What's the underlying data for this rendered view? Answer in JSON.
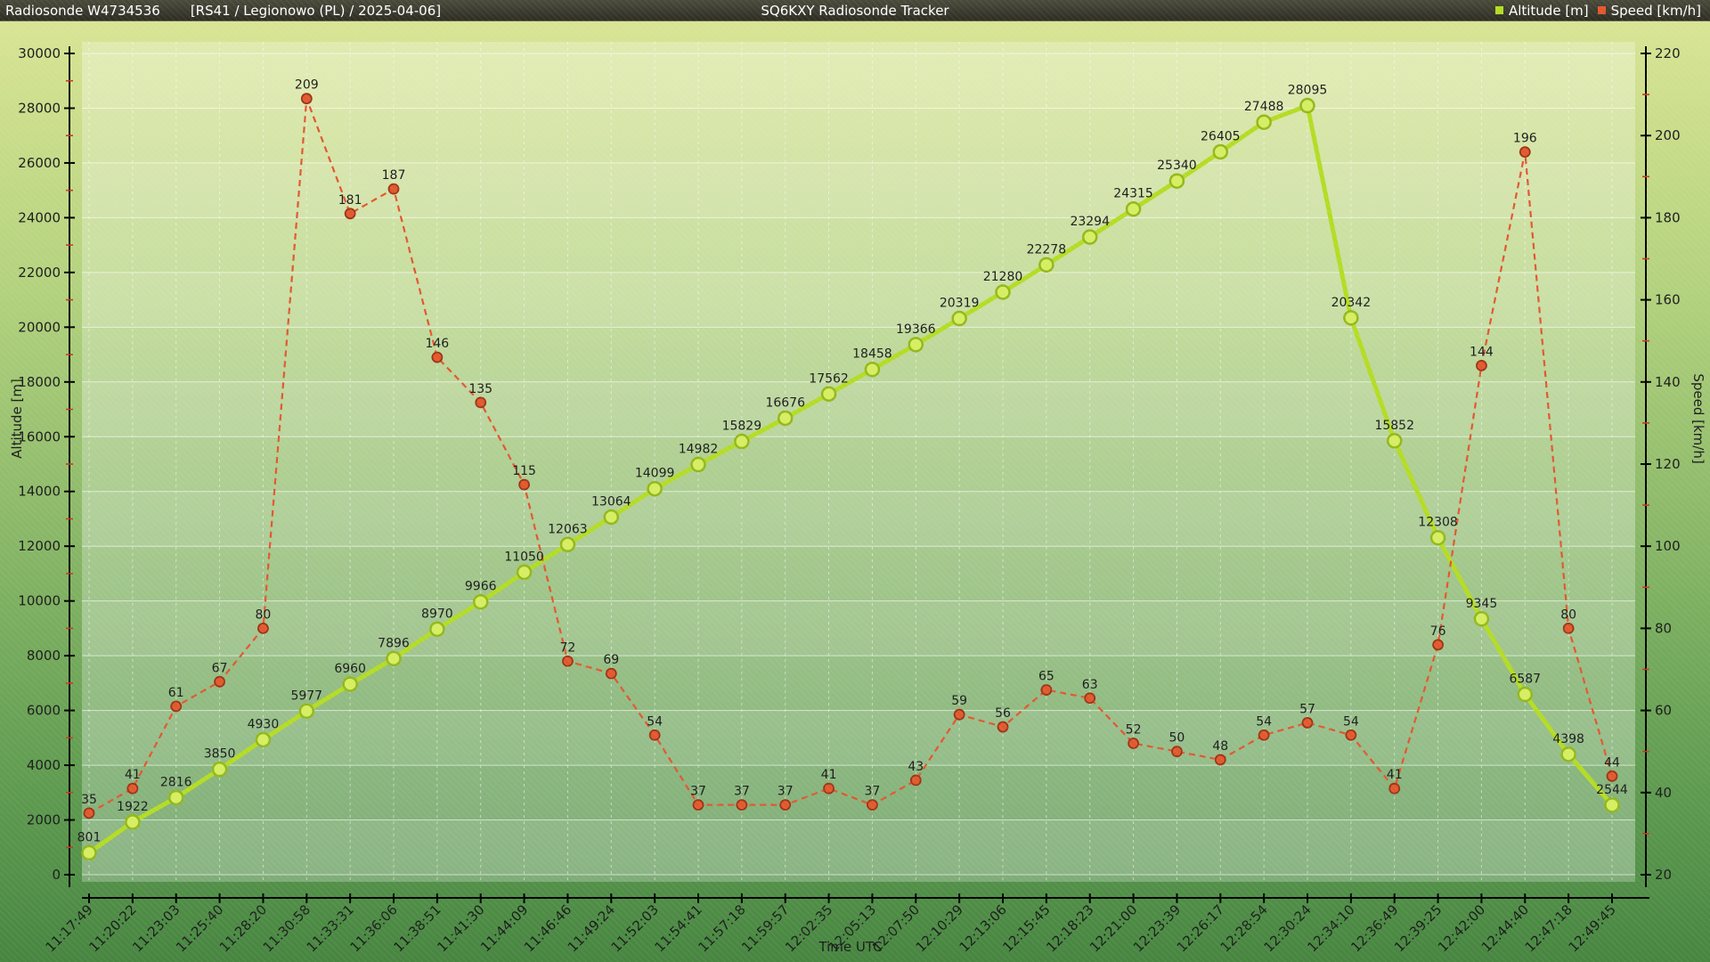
{
  "header": {
    "station": "Radiosonde W4734536",
    "details": "[RS41 / Legionowo (PL) / 2025-04-06]",
    "app_title": "SQ6KXY Radiosonde Tracker",
    "legend": [
      {
        "label": "Altitude [m]",
        "color": "#b4dc24"
      },
      {
        "label": "Speed [km/h]",
        "color": "#e2572f"
      }
    ]
  },
  "chart_data": {
    "type": "line",
    "title": "SQ6KXY Radiosonde Tracker",
    "xlabel": "Time UTC",
    "categories": [
      "11:17:49",
      "11:20:22",
      "11:23:03",
      "11:25:40",
      "11:28:20",
      "11:30:58",
      "11:33:31",
      "11:36:06",
      "11:38:51",
      "11:41:30",
      "11:44:09",
      "11:46:46",
      "11:49:24",
      "11:52:03",
      "11:54:41",
      "11:57:18",
      "11:59:57",
      "12:02:35",
      "12:05:13",
      "12:07:50",
      "12:10:29",
      "12:13:06",
      "12:15:45",
      "12:18:23",
      "12:21:00",
      "12:23:39",
      "12:26:17",
      "12:28:54",
      "12:30:24",
      "12:34:10",
      "12:36:49",
      "12:39:25",
      "12:42:00",
      "12:44:40",
      "12:47:18",
      "12:49:45"
    ],
    "series": [
      {
        "name": "Altitude [m]",
        "axis": "left",
        "color": "#b4dc24",
        "marker_fill": "#d5ee62",
        "marker_stroke": "#94b71a",
        "dashed": false,
        "values": [
          801,
          1922,
          2816,
          3850,
          4930,
          5977,
          6960,
          7896,
          8970,
          9966,
          11050,
          12063,
          13064,
          14099,
          14982,
          15829,
          16676,
          17562,
          18458,
          19366,
          20319,
          21280,
          22278,
          23294,
          24315,
          25340,
          26405,
          27488,
          28095,
          20342,
          15852,
          12308,
          9345,
          6587,
          4398,
          2544
        ]
      },
      {
        "name": "Speed [km/h]",
        "axis": "right",
        "color": "#e2572f",
        "marker_fill": "#e05a2d",
        "marker_stroke": "#9c3418",
        "dashed": true,
        "values": [
          35,
          41,
          61,
          67,
          80,
          209,
          181,
          187,
          146,
          135,
          115,
          72,
          69,
          54,
          37,
          37,
          37,
          41,
          37,
          43,
          59,
          56,
          65,
          63,
          52,
          50,
          48,
          54,
          57,
          54,
          41,
          76,
          144,
          196,
          80,
          44
        ]
      }
    ],
    "left_axis": {
      "title": "Altitude [m]",
      "min": 0,
      "max": 30000,
      "major_step": 2000,
      "minor_step": 1000
    },
    "right_axis": {
      "title": "Speed [km/h]",
      "min": 20,
      "max": 220,
      "major_step": 20,
      "minor_step": 10
    },
    "grid": true,
    "legend_position": "top-right",
    "minor_tick_color": "#c63b1e"
  }
}
